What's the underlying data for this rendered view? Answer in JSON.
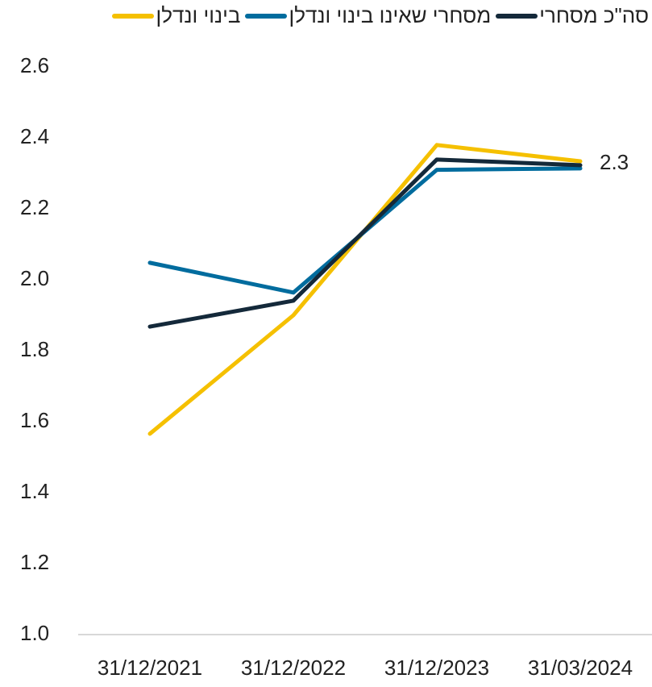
{
  "chart_data": {
    "type": "line",
    "categories": [
      "31/12/2021",
      "31/12/2022",
      "31/12/2023",
      "31/03/2024"
    ],
    "series": [
      {
        "name": "סה\"כ מסחרי",
        "color": "#14293a",
        "values": [
          1.868,
          1.941,
          2.339,
          2.323
        ],
        "value_labels": [
          null,
          null,
          null,
          "2.3"
        ]
      },
      {
        "name": "מסחרי שאינו בינוי ונדלן",
        "color": "#006c9e",
        "values": [
          2.048,
          1.964,
          2.31,
          2.314
        ]
      },
      {
        "name": "בינוי ונדלן",
        "color": "#f5c000",
        "values": [
          1.566,
          1.9,
          2.38,
          2.334
        ]
      }
    ],
    "ylim": [
      1.0,
      2.6
    ],
    "yticks": [
      {
        "value": 1,
        "label": "1.0"
      },
      1.2,
      1.4,
      1.6,
      1.8,
      {
        "value": 2,
        "label": "2.0"
      },
      2.2,
      2.4,
      2.6
    ],
    "grid": false,
    "legend": "top"
  }
}
